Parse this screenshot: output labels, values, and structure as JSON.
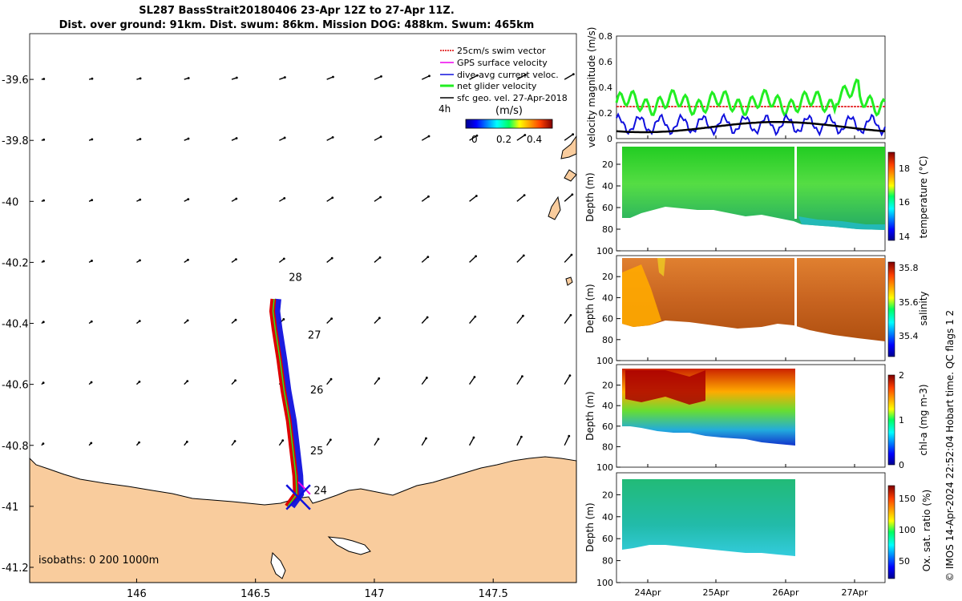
{
  "title_line1": "SL287 BassStrait20180406 23-Apr 12Z to 27-Apr 11Z.",
  "title_line2": "Dist. over ground: 91km. Dist. swum: 86km. Mission DOG: 488km. Swum: 465km",
  "copyright": "© IMOS 14-Apr-2024 22:52:04 Hobart time. QC flags 1  2",
  "colors": {
    "land": "#f9cc9d",
    "swim": "#dd0000",
    "gps": "#ee00ee",
    "current": "#1010dd",
    "net": "#22ee22",
    "geo": "#000000"
  },
  "chart_data": [
    {
      "type": "map",
      "xlim": [
        145.55,
        147.85
      ],
      "ylim": [
        -41.25,
        -39.45
      ],
      "xticks": [
        "146",
        "146.5",
        "147",
        "147.5"
      ],
      "yticks": [
        "-39.6",
        "-39.8",
        "-40",
        "-40.2",
        "-40.4",
        "-40.6",
        "-40.8",
        "-41",
        "-41.2"
      ],
      "legend": [
        "25cm/s swim vector",
        "GPS surface velocity",
        "dive-avg current veloc.",
        "net glider velocity",
        "sfc geo. vel. 27-Apr-2018"
      ],
      "colorbar": {
        "label": "(m/s)",
        "ticks": [
          "0",
          "0.2",
          "0.4"
        ],
        "range": [
          0,
          0.5
        ],
        "time_label": "4h"
      },
      "isobaths": "isobaths: 0   200  1000m",
      "track": [
        [
          146.633,
          -41.0
        ],
        [
          146.67,
          -40.96
        ],
        [
          146.667,
          -40.9
        ],
        [
          146.655,
          -40.82
        ],
        [
          146.64,
          -40.72
        ],
        [
          146.617,
          -40.62
        ],
        [
          146.6,
          -40.52
        ],
        [
          146.58,
          -40.42
        ],
        [
          146.57,
          -40.36
        ],
        [
          146.575,
          -40.32
        ]
      ],
      "day_labels": [
        {
          "day": "28",
          "lon": 146.64,
          "lat": -40.26
        },
        {
          "day": "27",
          "lon": 146.72,
          "lat": -40.45
        },
        {
          "day": "26",
          "lon": 146.73,
          "lat": -40.63
        },
        {
          "day": "25",
          "lon": 146.73,
          "lat": -40.83
        },
        {
          "day": "24",
          "lon": 146.745,
          "lat": -40.96
        }
      ],
      "geo_vectors_lon": [
        145.6,
        145.8,
        146.0,
        146.2,
        146.4,
        146.6,
        146.8,
        147.0,
        147.2,
        147.4,
        147.6,
        147.8
      ],
      "geo_vectors_lat": [
        -39.6,
        -39.8,
        -40.0,
        -40.2,
        -40.4,
        -40.6,
        -40.8,
        -41.0
      ]
    },
    {
      "type": "line",
      "ylabel": "velocity magnitude (m/s)",
      "ylim": [
        0,
        0.8
      ],
      "yticks": [
        "0",
        "0.2",
        "0.4",
        "0.6",
        "0.8"
      ],
      "series": [
        {
          "name": "swim 25cm/s",
          "level": 0.25
        },
        {
          "name": "net glider velocity",
          "mean": 0.28
        },
        {
          "name": "dive-avg current",
          "mean": 0.11
        },
        {
          "name": "sfc geo. vel.",
          "mean": 0.09
        }
      ]
    },
    {
      "type": "heatmap",
      "ylabel": "Depth (m)",
      "clabel": "temperature (°C)",
      "cticks": [
        "14",
        "16",
        "18"
      ],
      "yticks": [
        "20",
        "40",
        "60",
        "80",
        "100"
      ]
    },
    {
      "type": "heatmap",
      "ylabel": "Depth (m)",
      "clabel": "salinity",
      "cticks": [
        "35.4",
        "35.6",
        "35.8"
      ],
      "yticks": [
        "20",
        "40",
        "60",
        "80",
        "100"
      ]
    },
    {
      "type": "heatmap",
      "ylabel": "Depth (m)",
      "clabel": "chl-a (mg m-3)",
      "cticks": [
        "0",
        "1",
        "2"
      ],
      "yticks": [
        "20",
        "40",
        "60",
        "80",
        "100"
      ]
    },
    {
      "type": "heatmap",
      "ylabel": "Depth (m)",
      "clabel": "Ox. sat. ratio (%)",
      "cticks": [
        "50",
        "100",
        "150"
      ],
      "yticks": [
        "20",
        "40",
        "60",
        "80",
        "100"
      ],
      "xticks": [
        "24Apr",
        "25Apr",
        "26Apr",
        "27Apr"
      ]
    }
  ]
}
